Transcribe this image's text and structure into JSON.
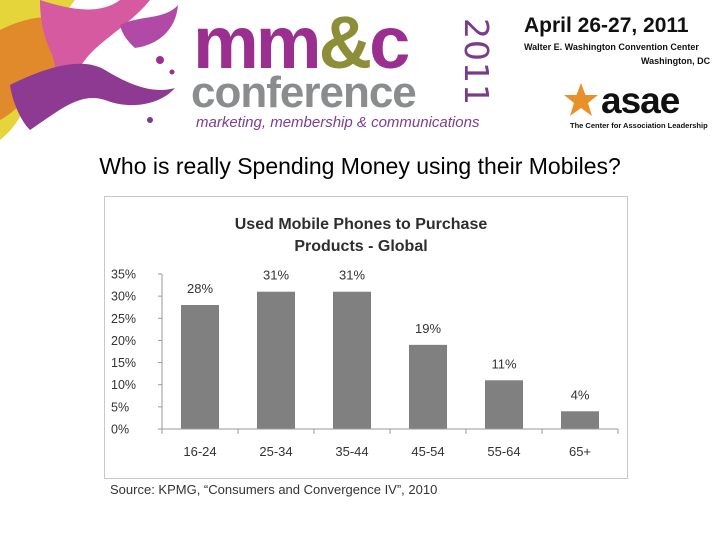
{
  "header": {
    "logo_main": "mm",
    "logo_amp": "&",
    "logo_c": "c",
    "logo_year": "2011",
    "logo_conference": "conference",
    "logo_tagline": "marketing, membership & communications",
    "event_date": "April 26-27, 2011",
    "event_venue": "Walter E. Washington Convention Center",
    "event_city": "Washington, DC",
    "asae_logo": "asae",
    "asae_tagline": "The Center for Association Leadership"
  },
  "slide": {
    "title": "Who is really Spending Money using their Mobiles?",
    "source": "Source:  KPMG, “Consumers and Convergence IV”, 2010"
  },
  "colors": {
    "bar": "#808080",
    "brand_purple": "#9a2f8f",
    "brand_olive": "#8c8f37",
    "brand_gray": "#8a8c8e"
  },
  "chart_data": {
    "type": "bar",
    "title": "Used Mobile Phones to Purchase",
    "subtitle": "Products  -  Global",
    "categories": [
      "16-24",
      "25-34",
      "35-44",
      "45-54",
      "55-64",
      "65+"
    ],
    "values": [
      28,
      31,
      31,
      19,
      11,
      4
    ],
    "value_labels": [
      "28%",
      "31%",
      "31%",
      "19%",
      "11%",
      "4%"
    ],
    "y_ticks": [
      "0%",
      "5%",
      "10%",
      "15%",
      "20%",
      "25%",
      "30%",
      "35%"
    ],
    "ylim": [
      0,
      35
    ],
    "grid": false,
    "legend": "none"
  }
}
